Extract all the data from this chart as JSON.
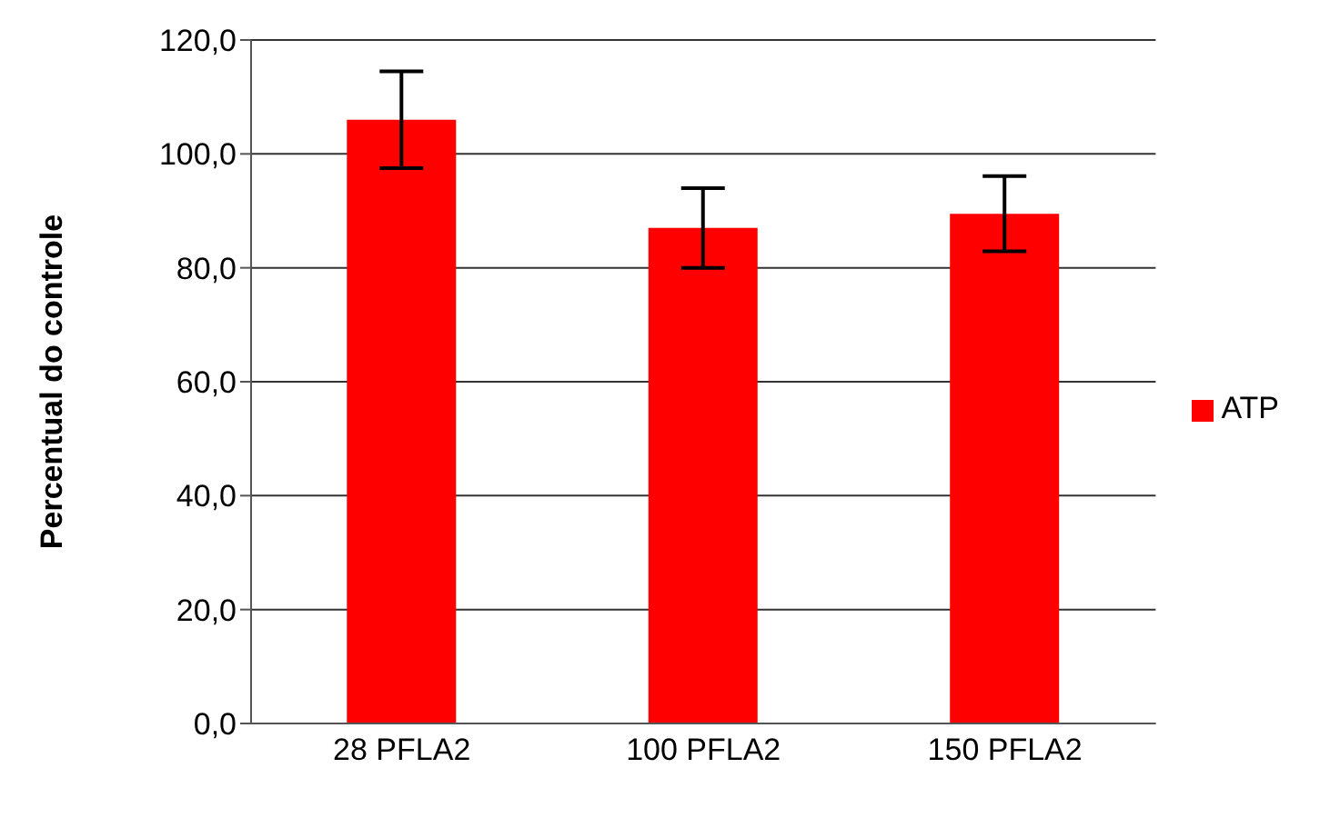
{
  "chart_data": {
    "type": "bar",
    "ylabel": "Percentual do controle",
    "categories": [
      "28 PFLA2",
      "100 PFLA2",
      "150 PFLA2"
    ],
    "series": [
      {
        "name": "ATP",
        "color": "#ff0000",
        "values": [
          106.0,
          87.0,
          89.5
        ],
        "errors": [
          8.5,
          7.0,
          6.6
        ]
      }
    ],
    "ylim": [
      0,
      120
    ],
    "yticks": [
      {
        "value": 0,
        "label": "0,0"
      },
      {
        "value": 20,
        "label": "20,0"
      },
      {
        "value": 40,
        "label": "40,0"
      },
      {
        "value": 60,
        "label": "60,0"
      },
      {
        "value": 80,
        "label": "80,0"
      },
      {
        "value": 100,
        "label": "100,0"
      },
      {
        "value": 120,
        "label": "120,0"
      }
    ],
    "grid": "y",
    "legend": "right"
  }
}
